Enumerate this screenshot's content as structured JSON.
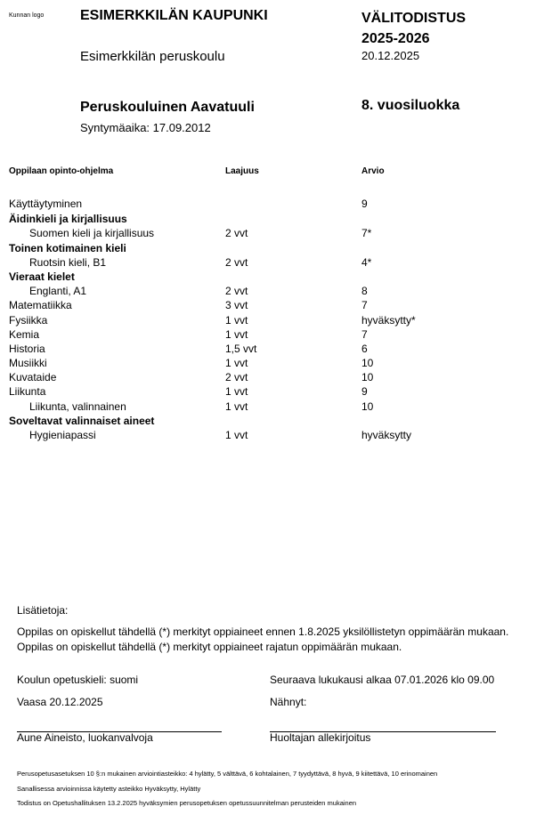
{
  "header": {
    "logo_text": "Kunnan logo",
    "municipality": "ESIMERKKILÄN KAUPUNKI",
    "school": "Esimerkkilän peruskoulu",
    "document_title": "VÄLITODISTUS",
    "school_year": "2025-2026",
    "date": "20.12.2025",
    "student_name": "Peruskouluinen Aavatuuli",
    "birthdate": "Syntymäaika: 17.09.2012",
    "grade_level": "8. vuosiluokka"
  },
  "table": {
    "headers": [
      "Oppilaan opinto-ohjelma",
      "Laajuus",
      "Arvio"
    ],
    "rows": [
      {
        "name": "Käyttäytyminen",
        "scope": "",
        "grade": "9",
        "style": "normal"
      },
      {
        "name": "Äidinkieli ja kirjallisuus",
        "scope": "",
        "grade": "",
        "style": "bold"
      },
      {
        "name": "Suomen kieli ja kirjallisuus",
        "scope": "2 vvt",
        "grade": "7*",
        "style": "indent"
      },
      {
        "name": "Toinen kotimainen kieli",
        "scope": "",
        "grade": "",
        "style": "bold"
      },
      {
        "name": "Ruotsin kieli, B1",
        "scope": "2 vvt",
        "grade": "4*",
        "style": "indent"
      },
      {
        "name": "Vieraat kielet",
        "scope": "",
        "grade": "",
        "style": "bold"
      },
      {
        "name": "Englanti, A1",
        "scope": "2 vvt",
        "grade": "8",
        "style": "indent"
      },
      {
        "name": "Matematiikka",
        "scope": "3 vvt",
        "grade": "7",
        "style": "normal"
      },
      {
        "name": "Fysiikka",
        "scope": "1 vvt",
        "grade": "hyväksytty*",
        "style": "normal"
      },
      {
        "name": "Kemia",
        "scope": "1 vvt",
        "grade": "7",
        "style": "normal"
      },
      {
        "name": "Historia",
        "scope": "1,5 vvt",
        "grade": "6",
        "style": "normal"
      },
      {
        "name": "Musiikki",
        "scope": "1 vvt",
        "grade": "10",
        "style": "normal"
      },
      {
        "name": "Kuvataide",
        "scope": "2 vvt",
        "grade": "10",
        "style": "normal"
      },
      {
        "name": "Liikunta",
        "scope": "1 vvt",
        "grade": "9",
        "style": "normal"
      },
      {
        "name": "Liikunta, valinnainen",
        "scope": "1 vvt",
        "grade": "10",
        "style": "indent"
      },
      {
        "name": "Soveltavat valinnaiset aineet",
        "scope": "",
        "grade": "",
        "style": "bold"
      },
      {
        "name": "Hygieniapassi",
        "scope": "1 vvt",
        "grade": "hyväksytty",
        "style": "indent"
      }
    ]
  },
  "info": {
    "label": "Lisätietoja:",
    "note1": "Oppilas on opiskellut tähdellä (*) merkityt oppiaineet ennen 1.8.2025 yksilöllistetyn oppimäärän mukaan.",
    "note2": "Oppilas on opiskellut tähdellä (*) merkityt oppiaineet rajatun oppimäärän mukaan.",
    "language": "Koulun opetuskieli: suomi",
    "next_term": "Seuraava lukukausi alkaa 07.01.2026 klo 09.00",
    "place_date": "Vaasa 20.12.2025",
    "seen": "Nähnyt:",
    "teacher": "Aune Aineisto, luokanvalvoja",
    "guardian": "Huoltajan allekirjoitus"
  },
  "footer": {
    "scale": "Perusopetusasetuksen 10 §:n mukainen arviointiasteikko: 4 hylätty, 5 välttävä, 6 kohtalainen, 7 tyydyttävä, 8 hyvä, 9 kiitettävä, 10 erinomainen",
    "verbal": "Sanallisessa arvioinnissa käytetty asteikko Hyväksytty, Hylätty",
    "curriculum": "Todistus on Opetushallituksen 13.2.2025 hyväksymien perusopetuksen opetussuunnitelman perusteiden mukainen"
  }
}
